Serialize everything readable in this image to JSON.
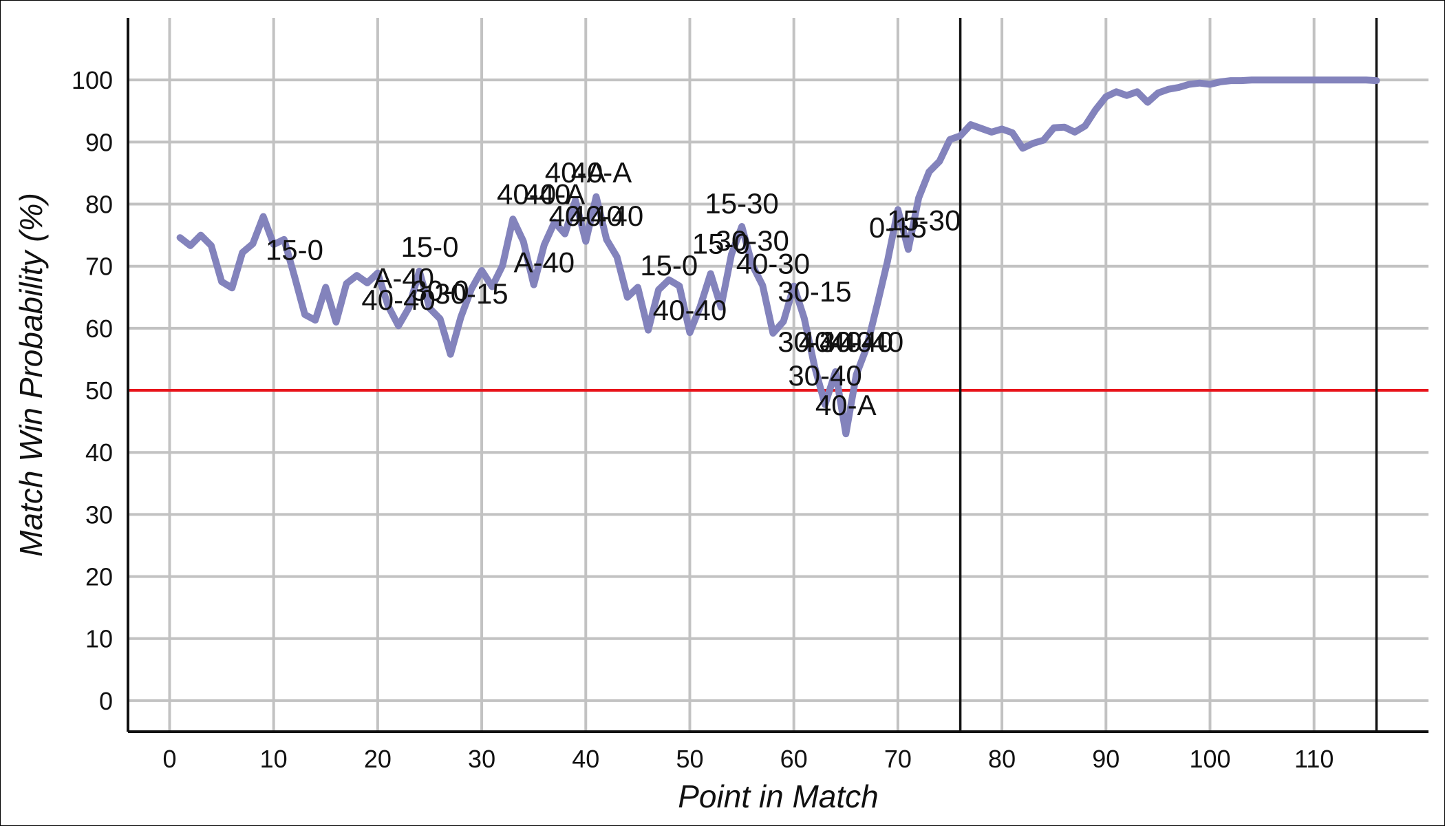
{
  "chart_data": {
    "type": "line",
    "title": "",
    "xlabel": "Point in Match",
    "ylabel": "Match Win Probability (%)",
    "xlim": [
      -4,
      121
    ],
    "ylim": [
      -5,
      110
    ],
    "x_ticks": [
      0,
      10,
      20,
      30,
      40,
      50,
      60,
      70,
      80,
      90,
      100,
      110
    ],
    "y_ticks": [
      0,
      10,
      20,
      30,
      40,
      50,
      60,
      70,
      80,
      90,
      100
    ],
    "grid": true,
    "legend": "none",
    "reference_line": {
      "y": 50,
      "color": "#e8141b"
    },
    "vertical_lines": [
      76,
      116
    ],
    "series": [
      {
        "color": "#8383bc",
        "x": [
          1,
          2,
          3,
          4,
          5,
          6,
          7,
          8,
          9,
          10,
          11,
          12,
          13,
          14,
          15,
          16,
          17,
          18,
          19,
          20,
          21,
          22,
          23,
          24,
          25,
          26,
          27,
          28,
          29,
          30,
          31,
          32,
          33,
          34,
          35,
          36,
          37,
          38,
          39,
          40,
          41,
          42,
          43,
          44,
          45,
          46,
          47,
          48,
          49,
          50,
          51,
          52,
          53,
          54,
          55,
          56,
          57,
          58,
          59,
          60,
          61,
          62,
          63,
          64,
          65,
          66,
          67,
          68,
          69,
          70,
          71,
          72,
          73,
          74,
          75,
          76,
          77,
          78,
          79,
          80,
          81,
          82,
          83,
          84,
          85,
          86,
          87,
          88,
          89,
          90,
          91,
          92,
          93,
          94,
          95,
          96,
          97,
          98,
          99,
          100,
          101,
          102,
          103,
          104,
          105,
          106,
          107,
          108,
          109,
          110,
          111,
          112,
          113,
          114,
          115,
          116
        ],
        "values": [
          74.6,
          73.3,
          75.0,
          73.3,
          67.5,
          66.5,
          72.2,
          73.6,
          78.0,
          73.5,
          74.3,
          68.4,
          62.2,
          61.3,
          66.6,
          61.0,
          67.2,
          68.5,
          67.3,
          68.9,
          63.6,
          60.4,
          63.3,
          69.2,
          63.2,
          61.5,
          55.8,
          61.8,
          66.3,
          69.3,
          66.7,
          70.1,
          77.6,
          74.0,
          67.0,
          73.4,
          77.1,
          75.2,
          80.6,
          74.0,
          81.2,
          74.3,
          71.5,
          65.0,
          66.6,
          59.7,
          66.2,
          67.8,
          66.8,
          59.3,
          63.5,
          68.8,
          63.4,
          71.9,
          76.4,
          70.2,
          66.9,
          59.2,
          61.1,
          66.8,
          61.6,
          53.8,
          47.7,
          53.0,
          43.0,
          52.5,
          56.9,
          63.7,
          70.8,
          79.1,
          72.7,
          81.0,
          85.2,
          86.9,
          90.4,
          91.0,
          92.8,
          92.2,
          91.6,
          92.1,
          91.5,
          89.0,
          89.8,
          90.3,
          92.3,
          92.4,
          91.6,
          92.6,
          95.2,
          97.3,
          98.1,
          97.5,
          98.1,
          96.4,
          97.9,
          98.5,
          98.8,
          99.3,
          99.5,
          99.3,
          99.7,
          99.9,
          99.9,
          100.0,
          100.0,
          100.0,
          100.0,
          100.0,
          100.0,
          100.0,
          100.0,
          100.0,
          100.0,
          100.0,
          100.0,
          99.9
        ]
      }
    ],
    "annotations": [
      {
        "text": "15-0",
        "x": 12,
        "y": 71.0
      },
      {
        "text": "15-0",
        "x": 25,
        "y": 71.5
      },
      {
        "text": "A-40",
        "x": 22.5,
        "y": 66.5
      },
      {
        "text": "40-40",
        "x": 22,
        "y": 63.0
      },
      {
        "text": "30-0",
        "x": 26,
        "y": 64.5
      },
      {
        "text": "30-15",
        "x": 29,
        "y": 64.0
      },
      {
        "text": "40-40",
        "x": 35,
        "y": 80.0
      },
      {
        "text": "40-A",
        "x": 37,
        "y": 80.0
      },
      {
        "text": "40-A",
        "x": 39,
        "y": 83.5
      },
      {
        "text": "40-A",
        "x": 41.5,
        "y": 83.5
      },
      {
        "text": "40-40",
        "x": 40,
        "y": 76.5
      },
      {
        "text": "40-40",
        "x": 42,
        "y": 76.5
      },
      {
        "text": "A-40",
        "x": 36,
        "y": 69.0
      },
      {
        "text": "15-0",
        "x": 48,
        "y": 68.5
      },
      {
        "text": "40-40",
        "x": 50,
        "y": 61.3
      },
      {
        "text": "15-30",
        "x": 55,
        "y": 78.5
      },
      {
        "text": "15-0",
        "x": 53,
        "y": 72.0
      },
      {
        "text": "30-30",
        "x": 56,
        "y": 72.5
      },
      {
        "text": "40-30",
        "x": 58,
        "y": 68.8
      },
      {
        "text": "30-15",
        "x": 62,
        "y": 64.3
      },
      {
        "text": "30-40",
        "x": 62,
        "y": 56.2
      },
      {
        "text": "40-40",
        "x": 64,
        "y": 56.2
      },
      {
        "text": "30-40",
        "x": 66,
        "y": 56.2
      },
      {
        "text": "40-40",
        "x": 67,
        "y": 56.2
      },
      {
        "text": "30-40",
        "x": 63,
        "y": 50.8
      },
      {
        "text": "40-A",
        "x": 65,
        "y": 46.0
      },
      {
        "text": "0-15",
        "x": 70,
        "y": 74.6
      },
      {
        "text": "15-30",
        "x": 72.5,
        "y": 75.8
      }
    ]
  }
}
